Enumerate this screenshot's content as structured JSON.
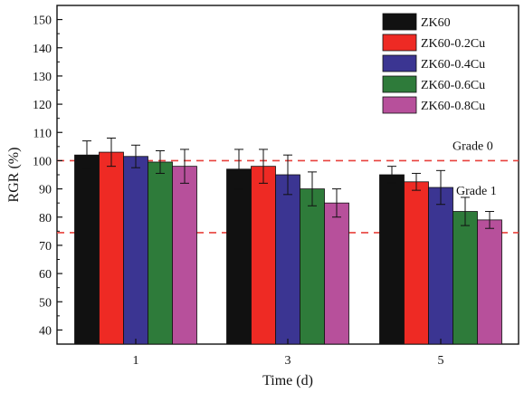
{
  "chart_data": {
    "type": "bar",
    "xlabel": "Time (d)",
    "ylabel": "RGR (%)",
    "ylim": [
      35,
      155
    ],
    "yticks": [
      40,
      50,
      60,
      70,
      80,
      90,
      100,
      110,
      120,
      130,
      140,
      150
    ],
    "categories": [
      "1",
      "3",
      "5"
    ],
    "legend_position": "top-right",
    "series": [
      {
        "name": "ZK60",
        "color": "#111111",
        "values": [
          102,
          97,
          95
        ],
        "errors": [
          5,
          7,
          3
        ]
      },
      {
        "name": "ZK60-0.2Cu",
        "color": "#ee2a24",
        "values": [
          103,
          98,
          92.5
        ],
        "errors": [
          5,
          6,
          3
        ]
      },
      {
        "name": "ZK60-0.4Cu",
        "color": "#3b3592",
        "values": [
          101.5,
          95,
          90.5
        ],
        "errors": [
          4,
          7,
          6
        ]
      },
      {
        "name": "ZK60-0.6Cu",
        "color": "#2e7b3a",
        "values": [
          99.5,
          90,
          82
        ],
        "errors": [
          4,
          6,
          5
        ]
      },
      {
        "name": "ZK60-0.8Cu",
        "color": "#b7509b",
        "values": [
          98,
          85,
          79
        ],
        "errors": [
          6,
          5,
          3
        ]
      }
    ],
    "reference_lines": [
      {
        "y": 100,
        "label": "Grade 0",
        "color": "#e8413c"
      },
      {
        "y": 74.5,
        "label": "Grade 1",
        "color": "#e8413c"
      }
    ]
  }
}
